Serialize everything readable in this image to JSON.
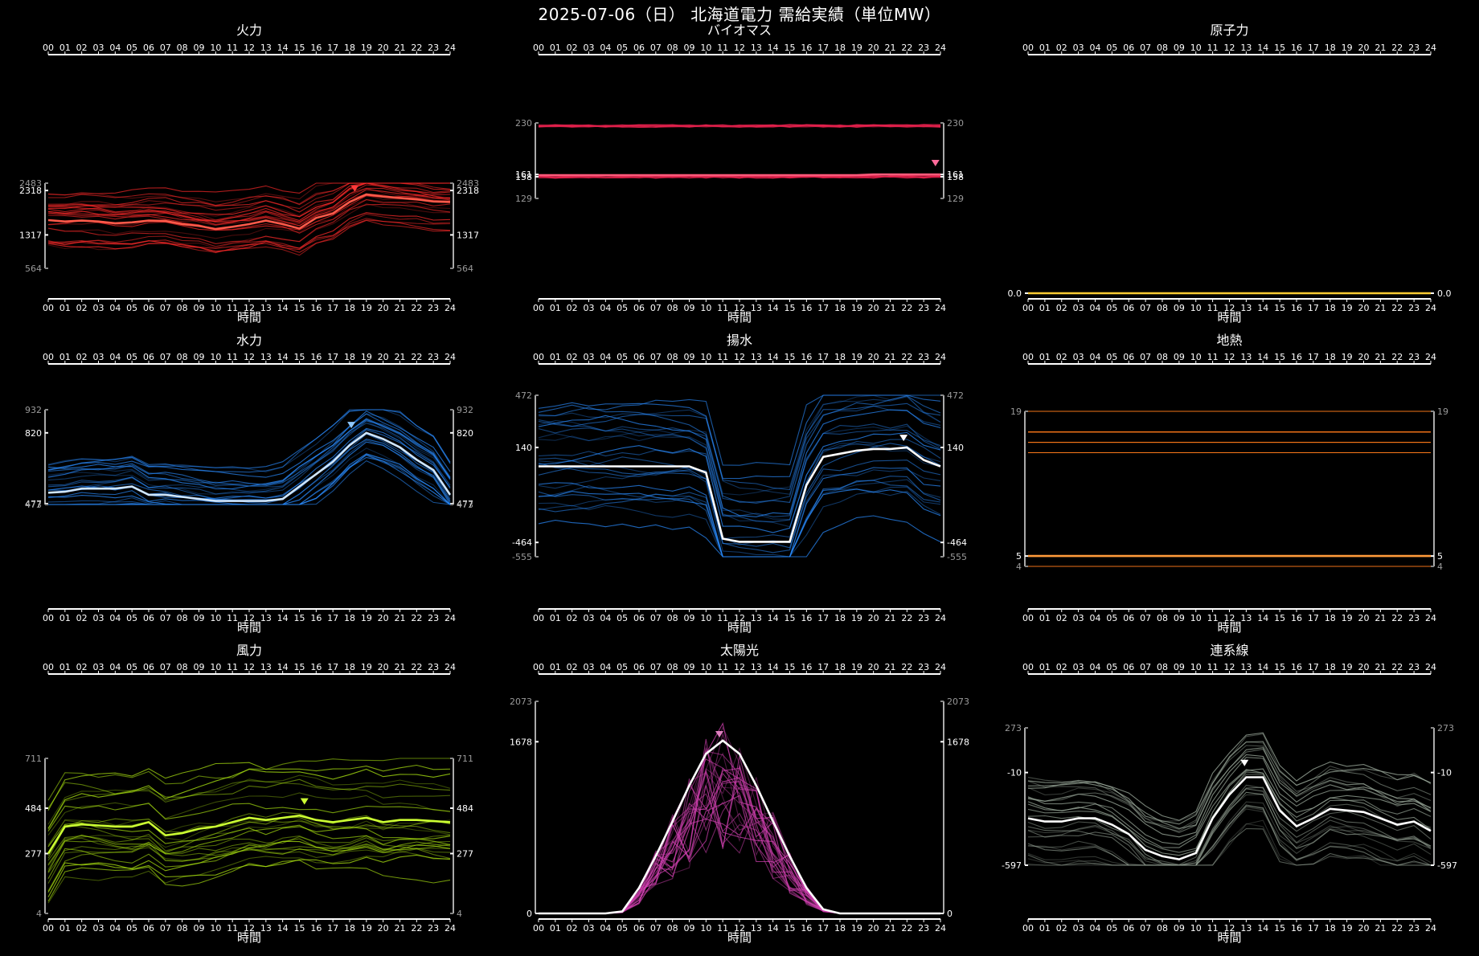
{
  "title": "2025-07-06（日） 北海道電力 需給実績（単位MW）",
  "hours": [
    "00",
    "01",
    "02",
    "03",
    "04",
    "05",
    "06",
    "07",
    "08",
    "09",
    "10",
    "11",
    "12",
    "13",
    "14",
    "15",
    "16",
    "17",
    "18",
    "19",
    "20",
    "21",
    "22",
    "23",
    "24"
  ],
  "xlabel": "時間",
  "chart_data": [
    {
      "type": "line",
      "title": "火力",
      "color": "#ff2a2a",
      "highlight": "#ff5a4a",
      "ylim": [
        564,
        2483
      ],
      "yticks": [
        {
          "v": 2483,
          "t": "2483",
          "dim": true
        },
        {
          "v": 2318,
          "t": "2318",
          "dim": false
        },
        {
          "v": 1317,
          "t": "1317",
          "dim": false
        },
        {
          "v": 564,
          "t": "564",
          "dim": true
        }
      ],
      "marker": {
        "x": 18.3,
        "y": 2290,
        "color": "#ff3a3a"
      },
      "series": [
        {
          "values": [
            1650,
            1620,
            1640,
            1620,
            1580,
            1600,
            1640,
            1630,
            1560,
            1520,
            1450,
            1500,
            1560,
            1640,
            1560,
            1460,
            1700,
            1800,
            2060,
            2230,
            2180,
            2150,
            2120,
            2070,
            2060
          ]
        }
      ]
    },
    {
      "type": "line",
      "title": "バイオマス",
      "color": "#e6224e",
      "highlight": "#ff5a7a",
      "ylim": [
        129,
        230
      ],
      "yticks": [
        {
          "v": 230,
          "t": "230",
          "dim": true
        },
        {
          "v": 161,
          "t": "161",
          "dim": false
        },
        {
          "v": 158,
          "t": "158",
          "dim": false
        },
        {
          "v": 129,
          "t": "129",
          "dim": true
        }
      ],
      "marker": {
        "x": 23.7,
        "y": 172,
        "color": "#ff6a9a"
      },
      "series": [
        {
          "values": [
            160,
            160,
            160,
            160,
            160,
            160,
            160,
            160,
            160,
            160,
            160,
            160,
            160,
            160,
            160,
            160,
            160,
            160,
            160,
            160,
            161,
            161,
            161,
            161,
            161
          ]
        }
      ]
    },
    {
      "type": "line",
      "title": "原子力",
      "color": "#ffcc33",
      "highlight": "#ffcc33",
      "ylim": [
        0,
        1
      ],
      "yticks": [
        {
          "v": 0,
          "t": "0.0",
          "dim": false
        }
      ],
      "series": [
        {
          "values": [
            0,
            0,
            0,
            0,
            0,
            0,
            0,
            0,
            0,
            0,
            0,
            0,
            0,
            0,
            0,
            0,
            0,
            0,
            0,
            0,
            0,
            0,
            0,
            0,
            0
          ]
        }
      ]
    },
    {
      "type": "line",
      "title": "水力",
      "color": "#2a8cff",
      "highlight": "#cfe6ff",
      "ylim": [
        473,
        932
      ],
      "yticks": [
        {
          "v": 932,
          "t": "932",
          "dim": true
        },
        {
          "v": 820,
          "t": "820",
          "dim": false
        },
        {
          "v": 477,
          "t": "477",
          "dim": false
        },
        {
          "v": 473,
          "t": "473",
          "dim": true
        }
      ],
      "marker": {
        "x": 18.1,
        "y": 842,
        "color": "#8fc8ff"
      },
      "series": [
        {
          "values": [
            530,
            535,
            550,
            550,
            550,
            560,
            520,
            520,
            510,
            500,
            490,
            490,
            490,
            490,
            500,
            560,
            620,
            680,
            760,
            820,
            790,
            750,
            690,
            640,
            520
          ]
        }
      ]
    },
    {
      "type": "line",
      "title": "揚水",
      "color": "#2a8cff",
      "highlight": "#ffffff",
      "ylim": [
        -555,
        472
      ],
      "yticks": [
        {
          "v": 472,
          "t": "472",
          "dim": true
        },
        {
          "v": 140,
          "t": "140",
          "dim": false
        },
        {
          "v": -464,
          "t": "-464",
          "dim": false
        },
        {
          "v": -555,
          "t": "-555",
          "dim": true
        }
      ],
      "marker": {
        "x": 21.8,
        "y": 180,
        "color": "#ffffff"
      },
      "series": [
        {
          "values": [
            20,
            20,
            20,
            20,
            20,
            20,
            20,
            20,
            20,
            20,
            -20,
            -440,
            -460,
            -460,
            -460,
            -460,
            -100,
            80,
            100,
            120,
            130,
            130,
            140,
            60,
            20
          ]
        }
      ]
    },
    {
      "type": "line",
      "title": "地熱",
      "color": "#ff7a1a",
      "highlight": "#ff9a3a",
      "ylim": [
        4,
        19
      ],
      "yticks": [
        {
          "v": 19,
          "t": "19",
          "dim": true
        },
        {
          "v": 5,
          "t": "5",
          "dim": false
        },
        {
          "v": 4,
          "t": "4",
          "dim": true
        }
      ],
      "series": [
        {
          "values": [
            5,
            5,
            5,
            5,
            5,
            5,
            5,
            5,
            5,
            5,
            5,
            5,
            5,
            5,
            5,
            5,
            5,
            5,
            5,
            5,
            5,
            5,
            5,
            5,
            5
          ]
        }
      ]
    },
    {
      "type": "line",
      "title": "風力",
      "color": "#a8e010",
      "highlight": "#ccff33",
      "ylim": [
        4,
        711
      ],
      "yticks": [
        {
          "v": 711,
          "t": "711",
          "dim": true
        },
        {
          "v": 484,
          "t": "484",
          "dim": false
        },
        {
          "v": 277,
          "t": "277",
          "dim": false
        },
        {
          "v": 4,
          "t": "4",
          "dim": true
        }
      ],
      "marker": {
        "x": 15.3,
        "y": 500,
        "color": "#ccff33"
      },
      "series": [
        {
          "values": [
            277,
            400,
            410,
            405,
            400,
            400,
            420,
            360,
            370,
            390,
            400,
            420,
            440,
            430,
            440,
            450,
            430,
            420,
            430,
            440,
            420,
            430,
            430,
            425,
            420
          ]
        }
      ]
    },
    {
      "type": "line",
      "title": "太陽光",
      "color": "#d040b0",
      "highlight": "#ffffff",
      "ylim": [
        0,
        2073
      ],
      "yticks": [
        {
          "v": 2073,
          "t": "2073",
          "dim": true
        },
        {
          "v": 1678,
          "t": "1678",
          "dim": false
        },
        {
          "v": 0,
          "t": "0",
          "dim": false
        }
      ],
      "marker": {
        "x": 10.8,
        "y": 1720,
        "color": "#e080c0"
      },
      "series": [
        {
          "values": [
            0,
            0,
            0,
            0,
            0,
            20,
            250,
            560,
            900,
            1250,
            1560,
            1690,
            1560,
            1250,
            900,
            560,
            250,
            40,
            0,
            0,
            0,
            0,
            0,
            0,
            0
          ]
        }
      ]
    },
    {
      "type": "line",
      "title": "連系線",
      "color": "#9aa89a",
      "highlight": "#ffffff",
      "ylim": [
        -597,
        273
      ],
      "yticks": [
        {
          "v": 273,
          "t": "273",
          "dim": true
        },
        {
          "v": -10,
          "t": "-10",
          "dim": false
        },
        {
          "v": -597,
          "t": "-597",
          "dim": false
        }
      ],
      "marker": {
        "x": 12.9,
        "y": 30,
        "color": "#ffffff"
      },
      "series": [
        {
          "values": [
            -300,
            -320,
            -320,
            -300,
            -300,
            -340,
            -400,
            -500,
            -540,
            -560,
            -520,
            -300,
            -150,
            -40,
            -40,
            -250,
            -350,
            -300,
            -240,
            -250,
            -260,
            -300,
            -340,
            -320,
            -380
          ]
        }
      ]
    }
  ]
}
